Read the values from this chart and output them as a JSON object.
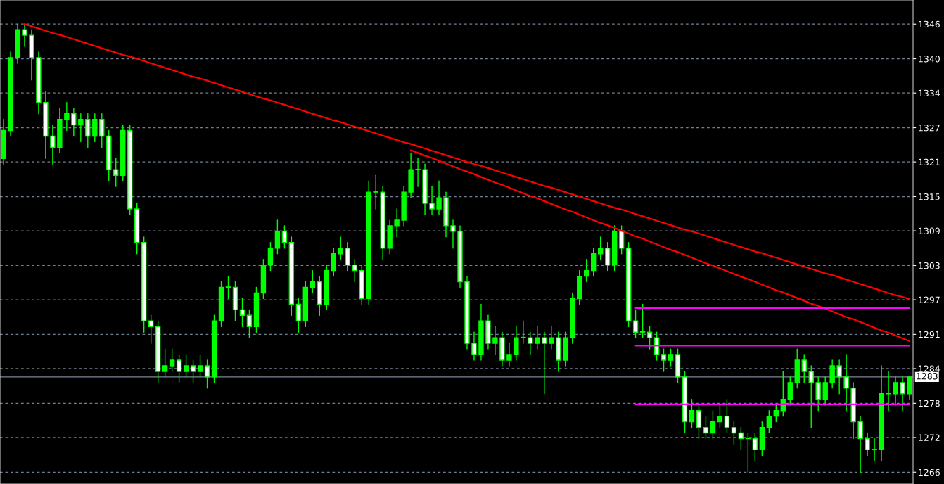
{
  "chart_data": {
    "type": "candlestick",
    "color": "#00ff00",
    "categories": [
      null,
      null,
      null,
      null,
      null,
      null,
      null,
      null,
      null,
      null,
      null,
      null,
      null,
      null,
      null,
      null,
      null,
      null,
      null,
      null,
      null,
      null,
      null,
      null,
      null,
      null,
      null,
      null,
      null,
      null,
      null,
      null,
      null,
      null,
      null,
      null,
      null,
      null,
      null,
      null,
      null,
      null,
      null,
      null,
      null,
      null,
      null,
      null,
      null,
      null,
      null,
      null,
      null,
      null,
      null,
      null,
      null,
      null,
      null,
      null,
      null,
      null,
      null,
      null,
      null,
      null,
      null,
      null,
      null,
      null,
      null,
      null,
      null,
      null,
      null,
      null,
      null,
      null,
      null,
      null,
      null,
      null,
      null,
      null,
      null,
      null,
      null,
      null,
      null,
      null,
      null,
      null,
      null,
      null,
      null,
      null,
      null,
      null,
      null,
      null,
      null,
      null,
      null,
      null,
      null,
      null,
      null,
      null,
      null,
      null,
      null,
      null,
      null,
      null,
      null,
      null,
      null,
      null,
      null,
      null,
      null,
      null,
      null,
      null,
      null,
      null,
      null,
      null,
      null,
      null
    ],
    "ohlc": [
      [
        1322,
        1329,
        1321,
        1327
      ],
      [
        1327,
        1341,
        1326,
        1340
      ],
      [
        1340,
        1346,
        1339,
        1345
      ],
      [
        1345,
        1346,
        1342,
        1344
      ],
      [
        1344,
        1345,
        1336,
        1340
      ],
      [
        1340,
        1341,
        1330,
        1332
      ],
      [
        1332,
        1334,
        1322,
        1326
      ],
      [
        1326,
        1328,
        1321,
        1324
      ],
      [
        1324,
        1331,
        1323,
        1329
      ],
      [
        1329,
        1332,
        1327,
        1330
      ],
      [
        1330,
        1331,
        1326,
        1328
      ],
      [
        1328,
        1330,
        1325,
        1329
      ],
      [
        1329,
        1330,
        1324,
        1326
      ],
      [
        1326,
        1330,
        1325,
        1329
      ],
      [
        1329,
        1330,
        1324,
        1326
      ],
      [
        1326,
        1327,
        1318,
        1320
      ],
      [
        1320,
        1322,
        1317,
        1319
      ],
      [
        1319,
        1328,
        1318,
        1327
      ],
      [
        1327,
        1328,
        1312,
        1313
      ],
      [
        1313,
        1314,
        1305,
        1307
      ],
      [
        1307,
        1308,
        1291,
        1293
      ],
      [
        1293,
        1294,
        1289,
        1292
      ],
      [
        1292,
        1293,
        1282,
        1284
      ],
      [
        1284,
        1288,
        1283,
        1285
      ],
      [
        1285,
        1288,
        1284,
        1286
      ],
      [
        1286,
        1287,
        1282,
        1284
      ],
      [
        1284,
        1287,
        1283,
        1285
      ],
      [
        1285,
        1286,
        1282,
        1284
      ],
      [
        1284,
        1287,
        1283,
        1285
      ],
      [
        1285,
        1286,
        1281,
        1283
      ],
      [
        1283,
        1294,
        1282,
        1293
      ],
      [
        1293,
        1300,
        1292,
        1299
      ],
      [
        1299,
        1301,
        1297,
        1299
      ],
      [
        1299,
        1300,
        1293,
        1295
      ],
      [
        1295,
        1297,
        1292,
        1294
      ],
      [
        1294,
        1295,
        1290,
        1292
      ],
      [
        1292,
        1299,
        1291,
        1298
      ],
      [
        1298,
        1304,
        1297,
        1303
      ],
      [
        1303,
        1307,
        1302,
        1306
      ],
      [
        1306,
        1311,
        1305,
        1309
      ],
      [
        1309,
        1310,
        1306,
        1307
      ],
      [
        1307,
        1308,
        1294,
        1296
      ],
      [
        1296,
        1297,
        1291,
        1293
      ],
      [
        1293,
        1300,
        1292,
        1299
      ],
      [
        1299,
        1302,
        1298,
        1300
      ],
      [
        1300,
        1301,
        1294,
        1296
      ],
      [
        1296,
        1303,
        1295,
        1302
      ],
      [
        1302,
        1306,
        1301,
        1305
      ],
      [
        1305,
        1308,
        1304,
        1306
      ],
      [
        1306,
        1307,
        1302,
        1303
      ],
      [
        1303,
        1304,
        1300,
        1302
      ],
      [
        1302,
        1303,
        1296,
        1297
      ],
      [
        1297,
        1318,
        1296,
        1316
      ],
      [
        1316,
        1319,
        1313,
        1316
      ],
      [
        1316,
        1317,
        1304,
        1306
      ],
      [
        1306,
        1311,
        1305,
        1310
      ],
      [
        1310,
        1313,
        1308,
        1311
      ],
      [
        1311,
        1317,
        1310,
        1316
      ],
      [
        1316,
        1323,
        1315,
        1320
      ],
      [
        1320,
        1322,
        1317,
        1320
      ],
      [
        1320,
        1321,
        1312,
        1314
      ],
      [
        1314,
        1317,
        1312,
        1313
      ],
      [
        1313,
        1318,
        1312,
        1315
      ],
      [
        1315,
        1316,
        1308,
        1310
      ],
      [
        1310,
        1311,
        1306,
        1309
      ],
      [
        1309,
        1310,
        1299,
        1300
      ],
      [
        1300,
        1301,
        1288,
        1289
      ],
      [
        1289,
        1291,
        1286,
        1287
      ],
      [
        1287,
        1296,
        1286,
        1293
      ],
      [
        1293,
        1294,
        1288,
        1289
      ],
      [
        1289,
        1292,
        1287,
        1290
      ],
      [
        1290,
        1291,
        1285,
        1286
      ],
      [
        1286,
        1289,
        1285,
        1287
      ],
      [
        1287,
        1292,
        1286,
        1290
      ],
      [
        1290,
        1293,
        1289,
        1290
      ],
      [
        1290,
        1291,
        1287,
        1289
      ],
      [
        1289,
        1292,
        1288,
        1290
      ],
      [
        1290,
        1291,
        1280,
        1289
      ],
      [
        1289,
        1292,
        1288,
        1290
      ],
      [
        1290,
        1291,
        1284,
        1286
      ],
      [
        1286,
        1291,
        1285,
        1290
      ],
      [
        1290,
        1298,
        1289,
        1297
      ],
      [
        1297,
        1302,
        1296,
        1301
      ],
      [
        1301,
        1304,
        1300,
        1302
      ],
      [
        1302,
        1306,
        1301,
        1305
      ],
      [
        1305,
        1308,
        1304,
        1306
      ],
      [
        1306,
        1307,
        1302,
        1303
      ],
      [
        1303,
        1310,
        1302,
        1309
      ],
      [
        1309,
        1310,
        1305,
        1306
      ],
      [
        1306,
        1307,
        1292,
        1293
      ],
      [
        1293,
        1295,
        1290,
        1291
      ],
      [
        1291,
        1296,
        1290,
        1291
      ],
      [
        1291,
        1292,
        1288,
        1290
      ],
      [
        1290,
        1291,
        1286,
        1287
      ],
      [
        1287,
        1288,
        1284,
        1286
      ],
      [
        1286,
        1288,
        1285,
        1287
      ],
      [
        1287,
        1288,
        1282,
        1283
      ],
      [
        1283,
        1284,
        1273,
        1275
      ],
      [
        1275,
        1279,
        1274,
        1277
      ],
      [
        1277,
        1278,
        1272,
        1274
      ],
      [
        1274,
        1276,
        1272,
        1273
      ],
      [
        1273,
        1277,
        1272,
        1275
      ],
      [
        1275,
        1278,
        1274,
        1276
      ],
      [
        1276,
        1279,
        1273,
        1274
      ],
      [
        1274,
        1275,
        1271,
        1273
      ],
      [
        1273,
        1274,
        1270,
        1272
      ],
      [
        1272,
        1273,
        1266,
        1272
      ],
      [
        1272,
        1273,
        1268,
        1270
      ],
      [
        1270,
        1275,
        1269,
        1274
      ],
      [
        1274,
        1277,
        1273,
        1276
      ],
      [
        1276,
        1278,
        1275,
        1277
      ],
      [
        1277,
        1284,
        1276,
        1279
      ],
      [
        1279,
        1283,
        1278,
        1282
      ],
      [
        1282,
        1288,
        1281,
        1286
      ],
      [
        1286,
        1287,
        1282,
        1284
      ],
      [
        1284,
        1285,
        1274,
        1282
      ],
      [
        1282,
        1283,
        1277,
        1279
      ],
      [
        1279,
        1283,
        1278,
        1282
      ],
      [
        1282,
        1286,
        1281,
        1285
      ],
      [
        1285,
        1286,
        1280,
        1283
      ],
      [
        1283,
        1287,
        1277,
        1281
      ],
      [
        1281,
        1282,
        1272,
        1275
      ],
      [
        1275,
        1276,
        1266,
        1272
      ],
      [
        1272,
        1273,
        1269,
        1270
      ],
      [
        1270,
        1272,
        1268,
        1270
      ],
      [
        1270,
        1285,
        1268,
        1280
      ],
      [
        1280,
        1284,
        1277,
        1280
      ],
      [
        1280,
        1283,
        1278,
        1282
      ],
      [
        1282,
        1283,
        1277,
        1280
      ],
      [
        1280,
        1283,
        1279,
        1283
      ]
    ],
    "series": [
      {
        "type": "line",
        "color": "#ff0000",
        "values": [
          null,
          null,
          null,
          1346.0,
          1345.6,
          1345.2,
          1344.8,
          1344.4,
          1344.1,
          1343.7,
          1343.3,
          1342.9,
          1342.5,
          1342.1,
          1341.7,
          1341.3,
          1340.9,
          1340.5,
          1340.2,
          1339.8,
          1339.4,
          1339.0,
          1338.6,
          1338.2,
          1337.8,
          1337.4,
          1337.0,
          1336.6,
          1336.3,
          1335.9,
          1335.5,
          1335.1,
          1334.7,
          1334.3,
          1333.9,
          1333.5,
          1333.1,
          1332.7,
          1332.4,
          1332.0,
          1331.6,
          1331.2,
          1330.8,
          1330.4,
          1330.0,
          1329.6,
          1329.2,
          1328.8,
          1328.5,
          1328.1,
          1327.7,
          1327.3,
          1326.9,
          1326.5,
          1326.1,
          1325.7,
          1325.3,
          1324.9,
          1324.6,
          1324.2,
          1323.8,
          1323.4,
          1323.0,
          1322.6,
          1322.2,
          1321.8,
          1321.4,
          1321.0,
          1320.7,
          1320.3,
          1319.9,
          1319.5,
          1319.1,
          1318.7,
          1318.3,
          1317.9,
          1317.5,
          1317.1,
          1316.8,
          1316.4,
          1316.0,
          1315.6,
          1315.2,
          1314.8,
          1314.4,
          1314.0,
          1313.6,
          1313.2,
          1312.9,
          1312.5,
          1312.1,
          1311.7,
          1311.3,
          1310.9,
          1310.5,
          1310.1,
          1309.7,
          1309.3,
          1309.0,
          1308.6,
          1308.2,
          1307.8,
          1307.4,
          1307.0,
          1306.6,
          1306.2,
          1305.8,
          1305.4,
          1305.1,
          1304.7,
          1304.3,
          1303.9,
          1303.5,
          1303.1,
          1302.7,
          1302.3,
          1301.9,
          1301.5,
          1301.2,
          1300.8,
          1300.4,
          1300.0,
          1299.6,
          1299.2,
          1298.8,
          1298.4,
          1298.0,
          1297.6,
          1297.3,
          1296.9
        ]
      },
      {
        "type": "line",
        "color": "#ff0000",
        "values": [
          null,
          null,
          null,
          null,
          null,
          null,
          null,
          null,
          null,
          null,
          null,
          null,
          null,
          null,
          null,
          null,
          null,
          null,
          null,
          null,
          null,
          null,
          null,
          null,
          null,
          null,
          null,
          null,
          null,
          null,
          null,
          null,
          null,
          null,
          null,
          null,
          null,
          null,
          null,
          null,
          null,
          null,
          null,
          null,
          null,
          null,
          null,
          null,
          null,
          null,
          null,
          null,
          null,
          null,
          null,
          null,
          null,
          null,
          1323.5,
          1323.0,
          1322.5,
          1322.1,
          1321.6,
          1321.1,
          1320.6,
          1320.1,
          1319.7,
          1319.2,
          1318.7,
          1318.2,
          1317.7,
          1317.3,
          1316.8,
          1316.3,
          1315.8,
          1315.3,
          1314.9,
          1314.4,
          1313.9,
          1313.4,
          1312.9,
          1312.5,
          1312.0,
          1311.5,
          1311.0,
          1310.5,
          1310.1,
          1309.6,
          1309.1,
          1308.6,
          1308.1,
          1307.7,
          1307.2,
          1306.7,
          1306.2,
          1305.7,
          1305.3,
          1304.8,
          1304.3,
          1303.8,
          1303.3,
          1302.9,
          1302.4,
          1301.9,
          1301.4,
          1300.9,
          1300.5,
          1300.0,
          1299.5,
          1299.0,
          1298.5,
          1298.1,
          1297.6,
          1297.1,
          1296.6,
          1296.1,
          1295.7,
          1295.2,
          1294.7,
          1294.2,
          1293.7,
          1293.3,
          1292.8,
          1292.3,
          1291.8,
          1291.3,
          1290.9,
          1290.4,
          1289.9,
          1289.4
        ]
      },
      {
        "type": "line",
        "color": "#ff00ff",
        "values": [
          null,
          null,
          null,
          null,
          null,
          null,
          null,
          null,
          null,
          null,
          null,
          null,
          null,
          null,
          null,
          null,
          null,
          null,
          null,
          null,
          null,
          null,
          null,
          null,
          null,
          null,
          null,
          null,
          null,
          null,
          null,
          null,
          null,
          null,
          null,
          null,
          null,
          null,
          null,
          null,
          null,
          null,
          null,
          null,
          null,
          null,
          null,
          null,
          null,
          null,
          null,
          null,
          null,
          null,
          null,
          null,
          null,
          null,
          null,
          null,
          null,
          null,
          null,
          null,
          null,
          null,
          null,
          null,
          null,
          null,
          null,
          null,
          null,
          null,
          null,
          null,
          null,
          null,
          null,
          null,
          null,
          null,
          null,
          null,
          null,
          null,
          null,
          null,
          null,
          null,
          1295.3,
          1295.3,
          1295.3,
          1295.3,
          1295.3,
          1295.3,
          1295.3,
          1295.3,
          1295.3,
          1295.3,
          1295.3,
          1295.3,
          1295.3,
          1295.3,
          1295.3,
          1295.3,
          1295.3,
          1295.3,
          1295.3,
          1295.3,
          1295.3,
          1295.3,
          1295.3,
          1295.3,
          1295.3,
          1295.3,
          1295.3,
          1295.3,
          1295.3,
          1295.3,
          1295.3,
          1295.3,
          1295.3,
          1295.3,
          1295.3,
          1295.3,
          1295.3,
          1295.3,
          1295.3,
          1295.3
        ]
      },
      {
        "type": "line",
        "color": "#ff00ff",
        "values": [
          null,
          null,
          null,
          null,
          null,
          null,
          null,
          null,
          null,
          null,
          null,
          null,
          null,
          null,
          null,
          null,
          null,
          null,
          null,
          null,
          null,
          null,
          null,
          null,
          null,
          null,
          null,
          null,
          null,
          null,
          null,
          null,
          null,
          null,
          null,
          null,
          null,
          null,
          null,
          null,
          null,
          null,
          null,
          null,
          null,
          null,
          null,
          null,
          null,
          null,
          null,
          null,
          null,
          null,
          null,
          null,
          null,
          null,
          null,
          null,
          null,
          null,
          null,
          null,
          null,
          null,
          null,
          null,
          null,
          null,
          null,
          null,
          null,
          null,
          null,
          null,
          null,
          null,
          null,
          null,
          null,
          null,
          null,
          null,
          null,
          null,
          null,
          null,
          null,
          null,
          1288.6,
          1288.6,
          1288.6,
          1288.6,
          1288.6,
          1288.6,
          1288.6,
          1288.6,
          1288.6,
          1288.6,
          1288.6,
          1288.6,
          1288.6,
          1288.6,
          1288.6,
          1288.6,
          1288.6,
          1288.6,
          1288.6,
          1288.6,
          1288.6,
          1288.6,
          1288.6,
          1288.6,
          1288.6,
          1288.6,
          1288.6,
          1288.6,
          1288.6,
          1288.6,
          1288.6,
          1288.6,
          1288.6,
          1288.6,
          1288.6,
          1288.6,
          1288.6,
          1288.6,
          1288.6,
          1288.6
        ]
      },
      {
        "type": "line",
        "color": "#ff00ff",
        "values": [
          null,
          null,
          null,
          null,
          null,
          null,
          null,
          null,
          null,
          null,
          null,
          null,
          null,
          null,
          null,
          null,
          null,
          null,
          null,
          null,
          null,
          null,
          null,
          null,
          null,
          null,
          null,
          null,
          null,
          null,
          null,
          null,
          null,
          null,
          null,
          null,
          null,
          null,
          null,
          null,
          null,
          null,
          null,
          null,
          null,
          null,
          null,
          null,
          null,
          null,
          null,
          null,
          null,
          null,
          null,
          null,
          null,
          null,
          null,
          null,
          null,
          null,
          null,
          null,
          null,
          null,
          null,
          null,
          null,
          null,
          null,
          null,
          null,
          null,
          null,
          null,
          null,
          null,
          null,
          null,
          null,
          null,
          null,
          null,
          null,
          null,
          null,
          null,
          null,
          null,
          1278.1,
          1278.1,
          1278.1,
          1278.1,
          1278.1,
          1278.1,
          1278.1,
          1278.1,
          1278.1,
          1278.1,
          1278.1,
          1278.1,
          1278.1,
          1278.1,
          1278.1,
          1278.1,
          1278.1,
          1278.1,
          1278.1,
          1278.1,
          1278.1,
          1278.1,
          1278.1,
          1278.1,
          1278.1,
          1278.1,
          1278.1,
          1278.1,
          1278.1,
          1278.1,
          1278.1,
          1278.1,
          1278.1,
          1278.1,
          1278.1,
          1278.1,
          1278.1,
          1278.1,
          1278.1,
          1278.1
        ]
      }
    ],
    "ref_lines": [
      {
        "axis": "y",
        "value": 1283,
        "label": "1283",
        "color": "#778899"
      }
    ],
    "ylim": [
      1263.9,
      1350.3
    ],
    "yticks": [
      1266,
      {
        "value": 1272.2,
        "label": "1272"
      },
      {
        "value": 1278.3,
        "label": "1278"
      },
      {
        "value": 1284.5,
        "label": "1284"
      },
      {
        "value": 1290.6,
        "label": "1291"
      },
      {
        "value": 1296.8,
        "label": "1297"
      },
      {
        "value": 1302.9,
        "label": "1303"
      },
      {
        "value": 1309.1,
        "label": "1309"
      },
      {
        "value": 1315.2,
        "label": "1315"
      },
      {
        "value": 1321.4,
        "label": "1321"
      },
      {
        "value": 1327.5,
        "label": "1327"
      },
      {
        "value": 1333.7,
        "label": "1334"
      },
      {
        "value": 1339.8,
        "label": "1340"
      },
      1346
    ],
    "tick_labels": "y",
    "grid": "y"
  }
}
